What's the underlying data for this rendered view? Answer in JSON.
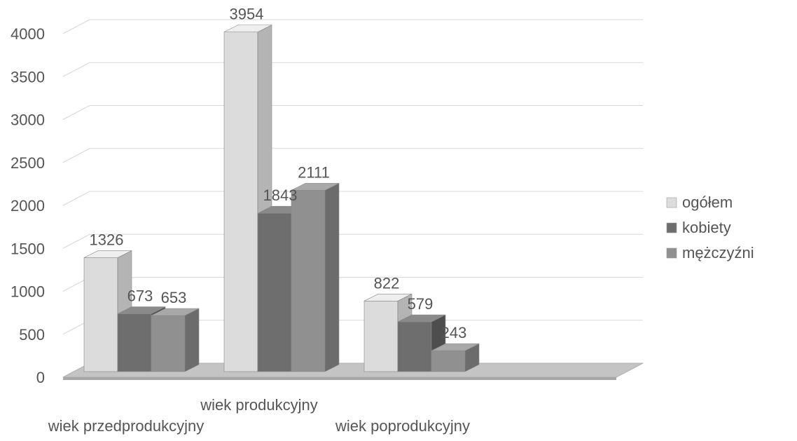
{
  "chart_data": {
    "type": "bar",
    "style": "3d-clustered-column",
    "categories": [
      "wiek przedprodukcyjny",
      "wiek produkcyjny",
      "wiek poprodukcyjny"
    ],
    "series": [
      {
        "name": "ogółem",
        "values": [
          1326,
          3954,
          822
        ],
        "color": "#dcdcdc",
        "side_color": "#b4b4b4",
        "top_color": "#eeeeee"
      },
      {
        "name": "kobiety",
        "values": [
          673,
          1843,
          579
        ],
        "color": "#6e6e6e",
        "side_color": "#4e4e4e",
        "top_color": "#8a8a8a"
      },
      {
        "name": "mężczyźni",
        "values": [
          653,
          2111,
          243
        ],
        "color": "#909090",
        "side_color": "#6c6c6c",
        "top_color": "#a8a8a8"
      }
    ],
    "data_labels": [
      [
        "1326",
        "3954",
        "822"
      ],
      [
        "673",
        "1843",
        "579"
      ],
      [
        "653",
        "2111",
        "243"
      ]
    ],
    "y_ticks": [
      "0",
      "500",
      "1000",
      "1500",
      "2000",
      "2500",
      "3000",
      "3500",
      "4000"
    ],
    "ylim": [
      0,
      4000
    ],
    "grid": true,
    "legend_position": "right",
    "title": "",
    "xlabel": "",
    "ylabel": ""
  }
}
